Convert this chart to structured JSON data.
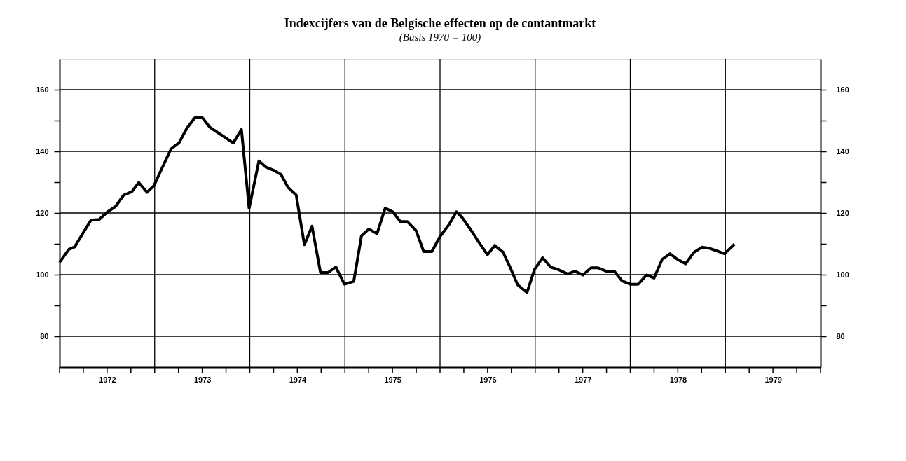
{
  "chart_data": {
    "type": "line",
    "title": "Indexcijfers van de Belgische effecten op de contantmarkt",
    "subtitle": "(Basis 1970 = 100)",
    "x": [
      1972.0,
      1972.098,
      1972.159,
      1972.245,
      1972.331,
      1972.417,
      1972.502,
      1972.588,
      1972.674,
      1972.76,
      1972.833,
      1972.919,
      1972.993,
      1973.078,
      1973.172,
      1973.257,
      1973.336,
      1973.422,
      1973.502,
      1973.581,
      1973.659,
      1973.74,
      1973.826,
      1973.912,
      1973.993,
      1974.096,
      1974.169,
      1974.248,
      1974.328,
      1974.402,
      1974.488,
      1974.574,
      1974.654,
      1974.743,
      1974.824,
      1974.904,
      1974.995,
      1975.093,
      1975.174,
      1975.252,
      1975.338,
      1975.424,
      1975.502,
      1975.583,
      1975.657,
      1975.748,
      1975.828,
      1975.914,
      1976.0,
      1976.098,
      1976.172,
      1976.233,
      1976.331,
      1976.409,
      1976.498,
      1976.576,
      1976.662,
      1976.735,
      1976.816,
      1976.914,
      1976.993,
      1977.078,
      1977.164,
      1977.238,
      1977.343,
      1977.417,
      1977.502,
      1977.588,
      1977.662,
      1977.748,
      1977.833,
      1977.912,
      1978.0,
      1978.083,
      1978.172,
      1978.25,
      1978.336,
      1978.417,
      1978.495,
      1978.581,
      1978.667,
      1978.752,
      1978.826,
      1978.912,
      1978.99,
      1979.096
    ],
    "series": [
      {
        "color": "#000000",
        "line_style": "solid",
        "values": [
          104.0,
          108.2,
          109.0,
          113.4,
          117.7,
          117.9,
          120.3,
          122.1,
          125.8,
          126.9,
          129.9,
          126.7,
          128.9,
          134.6,
          140.8,
          142.8,
          147.4,
          150.9,
          150.9,
          147.8,
          146.2,
          144.5,
          142.7,
          147.1,
          121.5,
          136.9,
          134.9,
          133.9,
          132.5,
          128.3,
          125.8,
          109.7,
          115.7,
          100.7,
          100.7,
          102.5,
          96.9,
          97.8,
          112.6,
          114.8,
          113.3,
          121.6,
          120.4,
          117.2,
          117.2,
          114.3,
          107.5,
          107.5,
          112.4,
          116.4,
          120.4,
          118.5,
          114.2,
          110.5,
          106.5,
          109.5,
          107.3,
          102.5,
          96.7,
          94.2,
          101.7,
          105.5,
          102.4,
          101.7,
          100.2,
          101.1,
          99.9,
          102.2,
          102.2,
          101.1,
          101.1,
          98.0,
          96.9,
          96.9,
          99.9,
          98.9,
          105.0,
          106.8,
          105.0,
          103.5,
          107.2,
          108.9,
          108.6,
          107.7,
          106.8,
          109.9
        ]
      }
    ],
    "xlim": [
      1972,
      1980
    ],
    "xticks": [
      {
        "value": 1972,
        "label": null
      },
      {
        "value": 1972.25,
        "label": null
      },
      {
        "value": 1972.5,
        "label": "1972"
      },
      {
        "value": 1972.75,
        "label": null
      },
      {
        "value": 1973,
        "label": null
      },
      {
        "value": 1973.25,
        "label": null
      },
      {
        "value": 1973.5,
        "label": "1973"
      },
      {
        "value": 1973.75,
        "label": null
      },
      {
        "value": 1974,
        "label": null
      },
      {
        "value": 1974.25,
        "label": null
      },
      {
        "value": 1974.5,
        "label": "1974"
      },
      {
        "value": 1974.75,
        "label": null
      },
      {
        "value": 1975,
        "label": null
      },
      {
        "value": 1975.25,
        "label": null
      },
      {
        "value": 1975.5,
        "label": "1975"
      },
      {
        "value": 1975.75,
        "label": null
      },
      {
        "value": 1976,
        "label": null
      },
      {
        "value": 1976.25,
        "label": null
      },
      {
        "value": 1976.5,
        "label": "1976"
      },
      {
        "value": 1976.75,
        "label": null
      },
      {
        "value": 1977,
        "label": null
      },
      {
        "value": 1977.25,
        "label": null
      },
      {
        "value": 1977.5,
        "label": "1977"
      },
      {
        "value": 1977.75,
        "label": null
      },
      {
        "value": 1978,
        "label": null
      },
      {
        "value": 1978.25,
        "label": null
      },
      {
        "value": 1978.5,
        "label": "1978"
      },
      {
        "value": 1978.75,
        "label": null
      },
      {
        "value": 1979,
        "label": null
      },
      {
        "value": 1979.25,
        "label": null
      },
      {
        "value": 1979.5,
        "label": "1979"
      },
      {
        "value": 1979.75,
        "label": null
      },
      {
        "value": 1980,
        "label": null
      }
    ],
    "ylim": [
      70,
      170
    ],
    "yticks": [
      80,
      {
        "value": 90,
        "label": null
      },
      100,
      {
        "value": 110,
        "label": null
      },
      120,
      {
        "value": 130,
        "label": null
      },
      140,
      {
        "value": 150,
        "label": null
      },
      160
    ],
    "y2lim": [
      70,
      170
    ],
    "y2ticks": [
      80,
      {
        "value": 90,
        "label": null
      },
      100,
      {
        "value": 110,
        "label": null
      },
      120,
      {
        "value": 130,
        "label": null
      },
      140,
      {
        "value": 150,
        "label": null
      },
      160
    ],
    "grid": true
  }
}
